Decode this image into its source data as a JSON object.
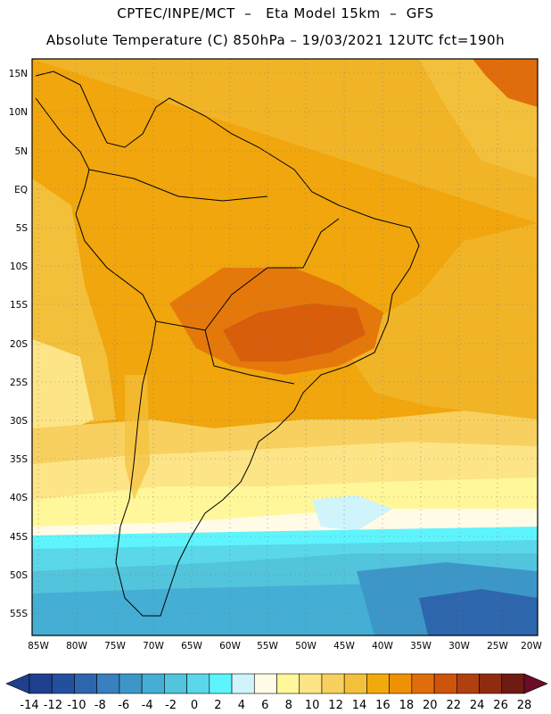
{
  "header": {
    "line1": "CPTEC/INPE/MCT  –   Eta Model 15km  –  GFS",
    "line2": "Absolute Temperature (C) 850hPa – 19/03/2021 12UTC fct=190h"
  },
  "map": {
    "lat_labels": [
      "15N",
      "10N",
      "5N",
      "EQ",
      "5S",
      "10S",
      "15S",
      "20S",
      "25S",
      "30S",
      "35S",
      "40S",
      "45S",
      "50S",
      "55S"
    ],
    "lon_labels": [
      "85W",
      "80W",
      "75W",
      "70W",
      "65W",
      "60W",
      "55W",
      "50W",
      "45W",
      "40W",
      "35W",
      "30W",
      "25W",
      "20W"
    ],
    "grid": "dotted"
  },
  "colorbar": {
    "ticks": [
      "-14",
      "-12",
      "-10",
      "-8",
      "-6",
      "-4",
      "-2",
      "0",
      "2",
      "4",
      "6",
      "8",
      "10",
      "12",
      "14",
      "16",
      "18",
      "20",
      "22",
      "24",
      "26",
      "28"
    ],
    "colors": [
      "#1f3f8f",
      "#23509e",
      "#2e66ad",
      "#3a7fbe",
      "#3c97c8",
      "#45aed4",
      "#52c4dc",
      "#5ad7e8",
      "#5ef4fd",
      "#cff4fc",
      "#fffbe6",
      "#fff79a",
      "#fde486",
      "#f7d060",
      "#f3c03c",
      "#f1a90c",
      "#ee9107",
      "#e06d0b",
      "#cc550b",
      "#b04010",
      "#8f2c10",
      "#6e1b12"
    ]
  }
}
